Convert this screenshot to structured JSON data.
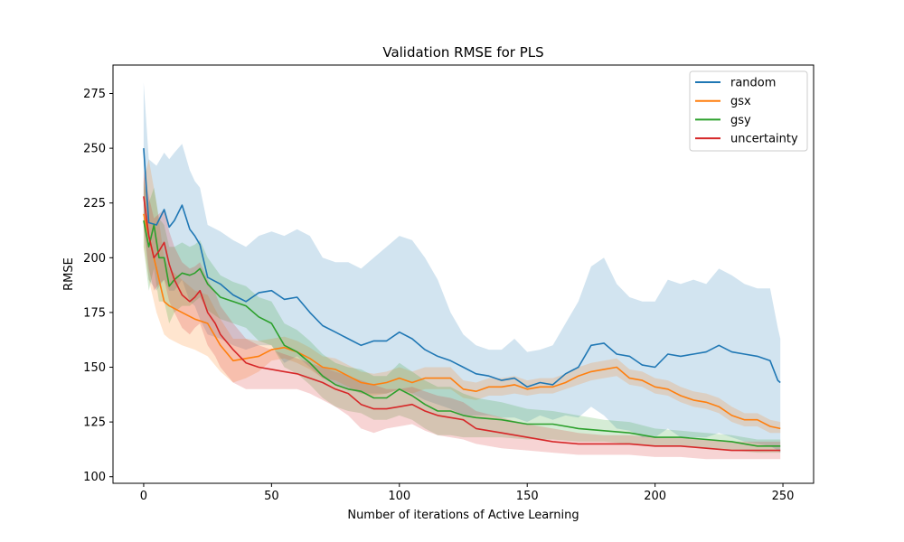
{
  "chart_data": {
    "type": "line",
    "title": "Validation RMSE for PLS",
    "xlabel": "Number of iterations of Active Learning",
    "ylabel": "RMSE",
    "xlim": [
      -12,
      262
    ],
    "ylim": [
      97,
      288
    ],
    "xticks": [
      0,
      50,
      100,
      150,
      200,
      250
    ],
    "yticks": [
      100,
      125,
      150,
      175,
      200,
      225,
      250,
      275
    ],
    "grid": false,
    "legend_position": "top-right",
    "series": [
      {
        "name": "random",
        "color": "#1f77b4",
        "x": [
          0,
          2,
          5,
          8,
          10,
          12,
          15,
          18,
          20,
          22,
          25,
          30,
          35,
          40,
          45,
          50,
          55,
          60,
          65,
          70,
          75,
          80,
          85,
          90,
          95,
          100,
          105,
          110,
          115,
          120,
          125,
          130,
          135,
          140,
          145,
          150,
          155,
          160,
          165,
          170,
          175,
          180,
          185,
          190,
          195,
          200,
          205,
          210,
          215,
          220,
          225,
          230,
          235,
          240,
          245,
          248,
          249
        ],
        "y": [
          250,
          216,
          215,
          222,
          214,
          217,
          224,
          213,
          210,
          206,
          191,
          188,
          183,
          180,
          184,
          185,
          181,
          182,
          175,
          169,
          166,
          163,
          160,
          162,
          162,
          166,
          163,
          158,
          155,
          153,
          150,
          147,
          146,
          144,
          145,
          141,
          143,
          142,
          147,
          150,
          160,
          161,
          156,
          155,
          151,
          150,
          156,
          155,
          156,
          157,
          160,
          157,
          156,
          155,
          153,
          144,
          143
        ],
        "lower": [
          215,
          190,
          185,
          190,
          185,
          185,
          190,
          180,
          178,
          172,
          165,
          163,
          160,
          158,
          160,
          160,
          152,
          155,
          150,
          145,
          142,
          140,
          138,
          138,
          138,
          140,
          138,
          135,
          133,
          131,
          128,
          128,
          128,
          127,
          127,
          125,
          128,
          126,
          128,
          127,
          132,
          128,
          122,
          121,
          118,
          118,
          122,
          118,
          118,
          118,
          120,
          118,
          116,
          115,
          114,
          112,
          111
        ],
        "upper": [
          280,
          245,
          242,
          248,
          245,
          248,
          252,
          240,
          235,
          232,
          215,
          212,
          208,
          205,
          210,
          212,
          210,
          213,
          210,
          200,
          198,
          198,
          195,
          200,
          205,
          210,
          208,
          200,
          190,
          175,
          165,
          160,
          158,
          158,
          163,
          157,
          158,
          160,
          170,
          180,
          196,
          200,
          188,
          182,
          180,
          180,
          190,
          188,
          190,
          188,
          195,
          192,
          188,
          186,
          186,
          168,
          163
        ]
      },
      {
        "name": "gsx",
        "color": "#ff7f0e",
        "x": [
          0,
          2,
          5,
          8,
          10,
          15,
          20,
          25,
          30,
          35,
          40,
          45,
          50,
          55,
          60,
          65,
          70,
          75,
          80,
          85,
          90,
          95,
          100,
          105,
          110,
          115,
          120,
          125,
          130,
          135,
          140,
          145,
          150,
          155,
          160,
          165,
          170,
          175,
          180,
          185,
          190,
          195,
          200,
          205,
          210,
          215,
          220,
          225,
          230,
          235,
          240,
          245,
          249
        ],
        "y": [
          220,
          210,
          195,
          180,
          178,
          175,
          172,
          170,
          160,
          153,
          154,
          155,
          158,
          159,
          157,
          154,
          150,
          149,
          146,
          143,
          142,
          143,
          145,
          143,
          145,
          145,
          145,
          140,
          139,
          141,
          141,
          142,
          140,
          141,
          141,
          143,
          146,
          148,
          149,
          150,
          145,
          144,
          141,
          140,
          137,
          135,
          134,
          132,
          128,
          126,
          126,
          123,
          122
        ],
        "lower": [
          205,
          190,
          175,
          165,
          163,
          160,
          158,
          155,
          148,
          143,
          145,
          148,
          153,
          154,
          152,
          149,
          145,
          144,
          141,
          138,
          137,
          138,
          140,
          138,
          140,
          140,
          140,
          136,
          135,
          137,
          137,
          138,
          137,
          138,
          138,
          140,
          142,
          144,
          145,
          146,
          142,
          141,
          138,
          137,
          134,
          132,
          131,
          129,
          125,
          123,
          123,
          120,
          120
        ],
        "upper": [
          235,
          245,
          225,
          200,
          195,
          190,
          185,
          183,
          172,
          163,
          163,
          162,
          163,
          164,
          162,
          159,
          155,
          154,
          151,
          148,
          147,
          148,
          150,
          148,
          150,
          150,
          150,
          144,
          143,
          145,
          145,
          146,
          144,
          145,
          145,
          147,
          150,
          152,
          153,
          154,
          149,
          148,
          145,
          144,
          141,
          139,
          138,
          136,
          132,
          129,
          129,
          126,
          125
        ]
      },
      {
        "name": "gsy",
        "color": "#2ca02c",
        "x": [
          0,
          2,
          4,
          6,
          8,
          10,
          12,
          15,
          18,
          20,
          22,
          25,
          30,
          35,
          40,
          45,
          50,
          55,
          60,
          65,
          70,
          75,
          80,
          85,
          90,
          95,
          100,
          105,
          110,
          115,
          120,
          125,
          130,
          140,
          150,
          160,
          170,
          180,
          190,
          200,
          210,
          220,
          230,
          240,
          249
        ],
        "y": [
          217,
          205,
          215,
          200,
          200,
          187,
          190,
          193,
          192,
          193,
          195,
          188,
          182,
          180,
          178,
          173,
          170,
          160,
          157,
          152,
          146,
          142,
          140,
          139,
          136,
          136,
          140,
          137,
          133,
          130,
          130,
          128,
          127,
          126,
          124,
          124,
          122,
          121,
          120,
          118,
          118,
          117,
          116,
          114,
          114
        ],
        "lower": [
          205,
          185,
          195,
          180,
          180,
          170,
          175,
          178,
          178,
          180,
          182,
          176,
          172,
          170,
          168,
          162,
          160,
          150,
          147,
          142,
          136,
          132,
          130,
          129,
          126,
          126,
          128,
          126,
          122,
          119,
          119,
          118,
          118,
          118,
          117,
          117,
          116,
          116,
          115,
          114,
          114,
          113,
          112,
          111,
          111
        ],
        "upper": [
          235,
          225,
          232,
          218,
          215,
          205,
          205,
          207,
          205,
          206,
          208,
          200,
          192,
          189,
          187,
          182,
          180,
          170,
          167,
          162,
          156,
          152,
          150,
          149,
          146,
          146,
          152,
          148,
          144,
          141,
          141,
          138,
          136,
          134,
          131,
          130,
          128,
          126,
          125,
          122,
          121,
          120,
          119,
          117,
          117
        ]
      },
      {
        "name": "uncertainty",
        "color": "#d62728",
        "x": [
          0,
          2,
          4,
          6,
          8,
          10,
          12,
          15,
          18,
          20,
          22,
          25,
          28,
          30,
          35,
          40,
          45,
          50,
          55,
          60,
          65,
          70,
          75,
          80,
          85,
          90,
          95,
          100,
          105,
          110,
          115,
          120,
          125,
          130,
          140,
          150,
          160,
          170,
          180,
          190,
          200,
          210,
          220,
          230,
          240,
          245,
          249
        ],
        "y": [
          228,
          210,
          200,
          203,
          207,
          197,
          190,
          183,
          180,
          182,
          185,
          175,
          170,
          165,
          158,
          152,
          150,
          149,
          148,
          147,
          145,
          143,
          140,
          138,
          133,
          131,
          131,
          132,
          133,
          130,
          128,
          127,
          126,
          122,
          120,
          118,
          116,
          115,
          115,
          115,
          114,
          114,
          113,
          112,
          112,
          112,
          112
        ],
        "lower": [
          215,
          195,
          185,
          188,
          190,
          180,
          175,
          168,
          165,
          168,
          170,
          160,
          155,
          150,
          143,
          140,
          140,
          140,
          140,
          140,
          138,
          135,
          132,
          128,
          122,
          120,
          122,
          123,
          124,
          121,
          119,
          118,
          117,
          115,
          113,
          112,
          111,
          110,
          110,
          110,
          109,
          109,
          108,
          108,
          108,
          108,
          108
        ],
        "upper": [
          240,
          228,
          218,
          220,
          222,
          212,
          205,
          198,
          195,
          196,
          198,
          190,
          184,
          178,
          170,
          163,
          160,
          158,
          156,
          154,
          152,
          150,
          148,
          146,
          144,
          142,
          140,
          140,
          141,
          139,
          137,
          136,
          134,
          130,
          127,
          124,
          122,
          120,
          119,
          119,
          118,
          118,
          117,
          116,
          116,
          116,
          116
        ]
      }
    ]
  }
}
